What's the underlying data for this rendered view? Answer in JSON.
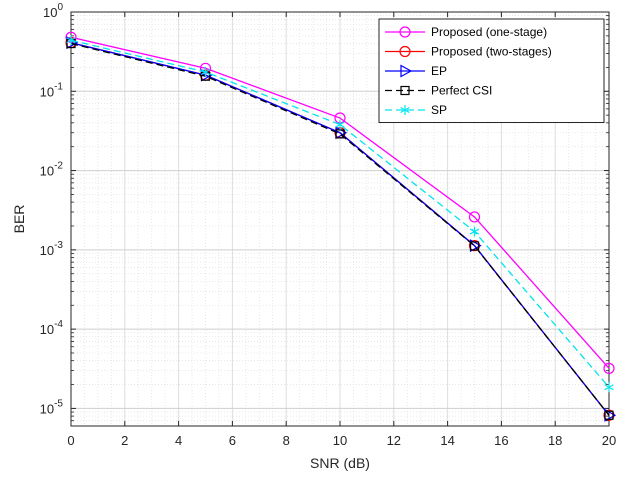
{
  "chart_data": {
    "type": "line",
    "title": "",
    "xlabel": "SNR (dB)",
    "ylabel": "BER",
    "xscale": "linear",
    "yscale": "log",
    "xlim": [
      0,
      20
    ],
    "ylim": [
      6e-06,
      1
    ],
    "x_ticks": [
      "0",
      "2",
      "4",
      "6",
      "8",
      "10",
      "12",
      "14",
      "16",
      "18",
      "20"
    ],
    "y_ticks": [
      {
        "base": "10",
        "exp": "0"
      },
      {
        "base": "10",
        "exp": "-1"
      },
      {
        "base": "10",
        "exp": "-2"
      },
      {
        "base": "10",
        "exp": "-3"
      },
      {
        "base": "10",
        "exp": "-4"
      },
      {
        "base": "10",
        "exp": "-5"
      }
    ],
    "grid": true,
    "minor_grid": true,
    "legend_position": "top-right",
    "x": [
      0,
      5,
      10,
      15,
      20
    ],
    "series": [
      {
        "name": "Proposed (one-stage)",
        "color": "#ff00ff",
        "marker": "circle",
        "dash": "solid",
        "values": [
          0.48,
          0.195,
          0.046,
          0.0026,
          3.2e-05
        ]
      },
      {
        "name": "Proposed (two-stages)",
        "color": "#ff0000",
        "marker": "circle",
        "dash": "solid",
        "values": [
          0.41,
          0.16,
          0.03,
          0.00113,
          8.2e-06
        ]
      },
      {
        "name": "EP",
        "color": "#0000ff",
        "marker": "triangle-right",
        "dash": "solid",
        "values": [
          0.41,
          0.16,
          0.03,
          0.00113,
          8.2e-06
        ]
      },
      {
        "name": "Perfect CSI",
        "color": "#000000",
        "marker": "square",
        "dash": "dashed",
        "values": [
          0.4,
          0.155,
          0.029,
          0.00112,
          8.2e-06
        ]
      },
      {
        "name": "SP",
        "color": "#00e5ee",
        "marker": "asterisk",
        "dash": "dashed",
        "values": [
          0.44,
          0.175,
          0.038,
          0.0017,
          1.85e-05
        ]
      }
    ]
  }
}
